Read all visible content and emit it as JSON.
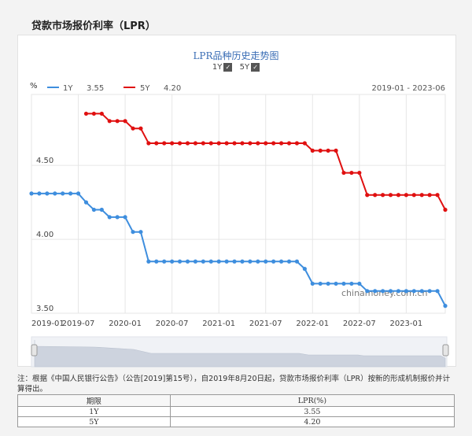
{
  "page": {
    "title": "贷款市场报价利率（LPR）"
  },
  "chart_title": "LPR品种历史走势图",
  "toggles": [
    {
      "label": "1Y",
      "checked": true
    },
    {
      "label": "5Y",
      "checked": true
    }
  ],
  "legend": {
    "unit": "%",
    "items": [
      {
        "name": "1Y",
        "value": "3.55",
        "color": "#3e8ede"
      },
      {
        "name": "5Y",
        "value": "4.20",
        "color": "#e01010"
      }
    ],
    "range": "2019-01 - 2023-06"
  },
  "watermark": "chinamoney.com.cn",
  "chart_data": {
    "type": "line",
    "ylim": [
      3.5,
      4.98
    ],
    "yticks": [
      "4.50",
      "4.00",
      "3.50"
    ],
    "xticks": [
      "2019-01",
      "2019-07",
      "2020-01",
      "2020-07",
      "2021-01",
      "2021-07",
      "2022-01",
      "2022-07",
      "2023-01"
    ],
    "xrange": [
      "2019-01",
      "2023-06"
    ],
    "grid": true,
    "series": [
      {
        "name": "1Y",
        "color": "#3e8ede",
        "x": [
          "2019-01",
          "2019-02",
          "2019-03",
          "2019-04",
          "2019-05",
          "2019-06",
          "2019-07",
          "2019-08",
          "2019-09",
          "2019-10",
          "2019-11",
          "2019-12",
          "2020-01",
          "2020-02",
          "2020-03",
          "2020-04",
          "2020-05",
          "2020-06",
          "2020-07",
          "2020-08",
          "2020-09",
          "2020-10",
          "2020-11",
          "2020-12",
          "2021-01",
          "2021-02",
          "2021-03",
          "2021-04",
          "2021-05",
          "2021-06",
          "2021-07",
          "2021-08",
          "2021-09",
          "2021-10",
          "2021-11",
          "2021-12",
          "2022-01",
          "2022-02",
          "2022-03",
          "2022-04",
          "2022-05",
          "2022-06",
          "2022-07",
          "2022-08",
          "2022-09",
          "2022-10",
          "2022-11",
          "2022-12",
          "2023-01",
          "2023-02",
          "2023-03",
          "2023-04",
          "2023-05",
          "2023-06"
        ],
        "y": [
          4.31,
          4.31,
          4.31,
          4.31,
          4.31,
          4.31,
          4.31,
          4.25,
          4.2,
          4.2,
          4.15,
          4.15,
          4.15,
          4.05,
          4.05,
          3.85,
          3.85,
          3.85,
          3.85,
          3.85,
          3.85,
          3.85,
          3.85,
          3.85,
          3.85,
          3.85,
          3.85,
          3.85,
          3.85,
          3.85,
          3.85,
          3.85,
          3.85,
          3.85,
          3.85,
          3.8,
          3.7,
          3.7,
          3.7,
          3.7,
          3.7,
          3.7,
          3.7,
          3.65,
          3.65,
          3.65,
          3.65,
          3.65,
          3.65,
          3.65,
          3.65,
          3.65,
          3.65,
          3.55
        ]
      },
      {
        "name": "5Y",
        "color": "#e01010",
        "x": [
          "2019-08",
          "2019-09",
          "2019-10",
          "2019-11",
          "2019-12",
          "2020-01",
          "2020-02",
          "2020-03",
          "2020-04",
          "2020-05",
          "2020-06",
          "2020-07",
          "2020-08",
          "2020-09",
          "2020-10",
          "2020-11",
          "2020-12",
          "2021-01",
          "2021-02",
          "2021-03",
          "2021-04",
          "2021-05",
          "2021-06",
          "2021-07",
          "2021-08",
          "2021-09",
          "2021-10",
          "2021-11",
          "2021-12",
          "2022-01",
          "2022-02",
          "2022-03",
          "2022-04",
          "2022-05",
          "2022-06",
          "2022-07",
          "2022-08",
          "2022-09",
          "2022-10",
          "2022-11",
          "2022-12",
          "2023-01",
          "2023-02",
          "2023-03",
          "2023-04",
          "2023-05",
          "2023-06"
        ],
        "y": [
          4.85,
          4.85,
          4.85,
          4.8,
          4.8,
          4.8,
          4.75,
          4.75,
          4.65,
          4.65,
          4.65,
          4.65,
          4.65,
          4.65,
          4.65,
          4.65,
          4.65,
          4.65,
          4.65,
          4.65,
          4.65,
          4.65,
          4.65,
          4.65,
          4.65,
          4.65,
          4.65,
          4.65,
          4.65,
          4.6,
          4.6,
          4.6,
          4.6,
          4.45,
          4.45,
          4.45,
          4.3,
          4.3,
          4.3,
          4.3,
          4.3,
          4.3,
          4.3,
          4.3,
          4.3,
          4.3,
          4.2
        ]
      }
    ]
  },
  "note": "注：根据《中国人民银行公告》（公告[2019]第15号），自2019年8月20日起，贷款市场报价利率（LPR）按新的形成机制报价并计算得出。",
  "table": {
    "headers": [
      "期限",
      "LPR(%)"
    ],
    "rows": [
      [
        "1Y",
        "3.55"
      ],
      [
        "5Y",
        "4.20"
      ]
    ]
  }
}
